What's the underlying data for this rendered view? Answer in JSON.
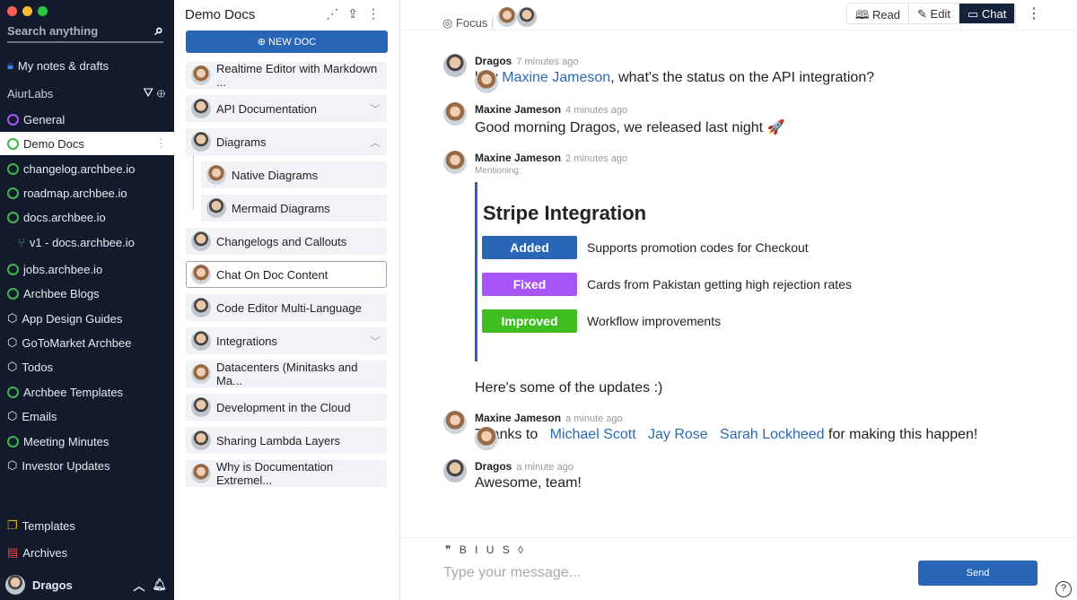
{
  "sidebar": {
    "search_placeholder": "Search anything",
    "my_notes": "My notes & drafts",
    "workspace": "AiurLabs",
    "items": [
      {
        "label": "General",
        "icon": "target"
      },
      {
        "label": "Demo Docs",
        "icon": "globe"
      },
      {
        "label": "changelog.archbee.io",
        "icon": "globe"
      },
      {
        "label": "roadmap.archbee.io",
        "icon": "globe"
      },
      {
        "label": "docs.archbee.io",
        "icon": "globe"
      },
      {
        "label": "v1 - docs.archbee.io",
        "icon": "branch"
      },
      {
        "label": "jobs.archbee.io",
        "icon": "globe"
      },
      {
        "label": "Archbee Blogs",
        "icon": "globe"
      },
      {
        "label": "App Design Guides",
        "icon": "cube"
      },
      {
        "label": "GoToMarket Archbee",
        "icon": "cube"
      },
      {
        "label": "Todos",
        "icon": "cube"
      },
      {
        "label": "Archbee Templates",
        "icon": "globe"
      },
      {
        "label": "Emails",
        "icon": "cube"
      },
      {
        "label": "Meeting Minutes",
        "icon": "globe"
      },
      {
        "label": "Investor Updates",
        "icon": "cube"
      }
    ],
    "templates": "Templates",
    "archives": "Archives",
    "user": "Dragos"
  },
  "docs": {
    "title": "Demo Docs",
    "new_doc": "⊕ NEW DOC",
    "items": [
      "Realtime Editor with Markdown ...",
      "API Documentation",
      "Diagrams",
      "Native Diagrams",
      "Mermaid Diagrams",
      "Changelogs and Callouts",
      "Chat On Doc Content",
      "Code Editor Multi-Language",
      "Integrations",
      "Datacenters (Minitasks and Ma...",
      "Development in the Cloud",
      "Sharing Lambda Layers",
      "Why is Documentation Extremel..."
    ]
  },
  "topbar": {
    "focus": "Focus",
    "tabs": [
      "Read",
      "Edit",
      "Chat"
    ],
    "active_tab": "Chat"
  },
  "chat": {
    "m1": {
      "name": "Dragos",
      "time": "7 minutes ago",
      "pre": "hey",
      "mention": "Maxine Jameson",
      "post": ", what's the status on the API integration?"
    },
    "m2": {
      "name": "Maxine Jameson",
      "time": "4 minutes ago",
      "text": "Good morning Dragos, we released last night 🚀"
    },
    "m3": {
      "name": "Maxine Jameson",
      "time": "2 minutes ago",
      "mentioning": "Mentioning:",
      "card_title": "Stripe Integration",
      "rows": [
        {
          "badge": "Added",
          "color": "#2966b8",
          "text": "Supports promotion codes for Checkout"
        },
        {
          "badge": "Fixed",
          "color": "#a855f7",
          "text": "Cards from Pakistan getting high rejection rates"
        },
        {
          "badge": "Improved",
          "color": "#3fbf1f",
          "text": "Workflow improvements"
        }
      ],
      "after": "Here's some of the updates :)"
    },
    "m4": {
      "name": "Maxine Jameson",
      "time": "a minute ago",
      "pre": "Thanks to",
      "mentions": [
        "Michael Scott",
        "Jay Rose",
        "Sarah Lockheed"
      ],
      "post": "for making this happen!"
    },
    "m5": {
      "name": "Dragos",
      "time": "a minute ago",
      "text": "Awesome, team!"
    }
  },
  "composer": {
    "format": "❞ B I U S ◊",
    "placeholder": "Type your message...",
    "send": "Send",
    "help": "?"
  }
}
